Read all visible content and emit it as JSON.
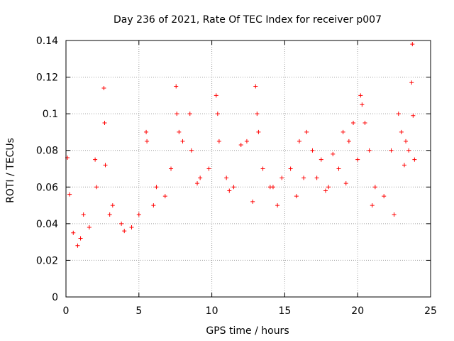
{
  "chart_data": {
    "type": "scatter",
    "title": "Day 236 of 2021, Rate Of TEC Index for receiver p007",
    "xlabel": "GPS time / hours",
    "ylabel": "ROTI / TECUs",
    "xlim": [
      0,
      25
    ],
    "ylim": [
      0,
      0.14
    ],
    "xticks": [
      0,
      5,
      10,
      15,
      20,
      25
    ],
    "xtick_labels": [
      "0",
      "5",
      "10",
      "15",
      "20",
      "25"
    ],
    "yticks": [
      0,
      0.02,
      0.04,
      0.06,
      0.08,
      0.1,
      0.12,
      0.14
    ],
    "ytick_labels": [
      "0",
      "0.02",
      "0.04",
      "0.06",
      "0.08",
      "0.1",
      "0.12",
      "0.14"
    ],
    "grid": true,
    "marker": "+",
    "color": "#ff0000",
    "x_range_of_data": [
      0,
      24
    ],
    "series": [
      {
        "x": [
          0.1,
          0.25,
          0.5,
          0.8,
          1.2,
          1.6,
          2.0,
          2.1,
          2.6,
          2.65,
          2.7,
          3.2,
          3.8,
          4.5,
          5.0,
          5.5,
          5.55,
          6.2,
          6.8,
          7.2,
          7.55,
          7.6,
          7.75,
          8.0,
          8.5,
          8.6,
          9.2,
          9.8,
          10.3,
          10.4,
          10.5,
          11.0,
          11.5,
          12.0,
          12.4,
          13.0,
          13.1,
          13.2,
          13.5,
          14.0,
          14.2,
          14.8,
          15.4,
          16.0,
          16.3,
          16.5,
          16.9,
          17.2,
          17.5,
          18.0,
          18.3,
          18.7,
          19.0,
          19.4,
          19.7,
          20.0,
          20.2,
          20.3,
          20.5,
          20.8,
          21.2,
          21.8,
          22.3,
          22.8,
          23.0,
          23.3,
          23.5,
          23.7,
          23.75,
          23.8,
          23.9,
          1.0,
          3.0,
          4.0,
          6.0,
          9.0,
          11.2,
          12.8,
          14.5,
          15.8,
          17.8,
          19.2,
          21.0,
          22.5,
          23.2
        ],
        "y": [
          0.076,
          0.056,
          0.035,
          0.028,
          0.045,
          0.038,
          0.075,
          0.06,
          0.114,
          0.095,
          0.072,
          0.05,
          0.04,
          0.038,
          0.045,
          0.09,
          0.085,
          0.06,
          0.055,
          0.07,
          0.115,
          0.1,
          0.09,
          0.085,
          0.1,
          0.08,
          0.065,
          0.07,
          0.11,
          0.1,
          0.085,
          0.065,
          0.06,
          0.083,
          0.085,
          0.115,
          0.1,
          0.09,
          0.07,
          0.06,
          0.06,
          0.065,
          0.07,
          0.085,
          0.065,
          0.09,
          0.08,
          0.065,
          0.075,
          0.06,
          0.078,
          0.07,
          0.09,
          0.085,
          0.095,
          0.075,
          0.11,
          0.105,
          0.095,
          0.08,
          0.06,
          0.055,
          0.08,
          0.1,
          0.09,
          0.085,
          0.08,
          0.117,
          0.138,
          0.099,
          0.075,
          0.032,
          0.045,
          0.036,
          0.05,
          0.062,
          0.058,
          0.052,
          0.05,
          0.055,
          0.058,
          0.062,
          0.05,
          0.045,
          0.072
        ]
      }
    ]
  }
}
